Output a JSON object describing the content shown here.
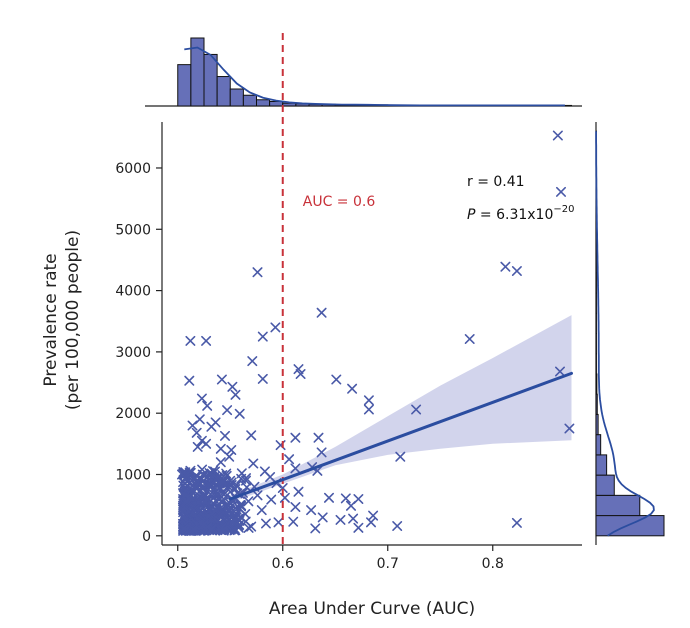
{
  "chart_data": {
    "type": "scatter",
    "xlabel": "Area Under Curve (AUC)",
    "ylabel_line1": "Prevalence rate",
    "ylabel_line2": "(per 100,000 people)",
    "xlim": [
      0.485,
      0.885
    ],
    "ylim": [
      -150,
      6750
    ],
    "x_ticks": [
      {
        "value": 0.5,
        "label": "0.5"
      },
      {
        "value": 0.6,
        "label": "0.6"
      },
      {
        "value": 0.7,
        "label": "0.7"
      },
      {
        "value": 0.8,
        "label": "0.8"
      }
    ],
    "y_ticks": [
      {
        "value": 0,
        "label": "0"
      },
      {
        "value": 1000,
        "label": "1000"
      },
      {
        "value": 2000,
        "label": "2000"
      },
      {
        "value": 3000,
        "label": "3000"
      },
      {
        "value": 4000,
        "label": "4000"
      },
      {
        "value": 5000,
        "label": "5000"
      },
      {
        "value": 6000,
        "label": "6000"
      }
    ],
    "threshold": {
      "x": 0.6,
      "label": "AUC = 0.6"
    },
    "stats": {
      "r_text": "r = 0.41",
      "p_prefix": "P",
      "p_value": " = 6.31x10",
      "p_exponent": "−20"
    },
    "regression": {
      "x0": 0.55,
      "y0": 600,
      "x1": 0.875,
      "y1": 2650
    },
    "confidence_band": {
      "upper": [
        [
          0.55,
          660
        ],
        [
          0.6,
          1000
        ],
        [
          0.65,
          1450
        ],
        [
          0.7,
          1950
        ],
        [
          0.75,
          2450
        ],
        [
          0.8,
          2900
        ],
        [
          0.875,
          3600
        ]
      ],
      "lower": [
        [
          0.55,
          540
        ],
        [
          0.6,
          850
        ],
        [
          0.65,
          1150
        ],
        [
          0.7,
          1320
        ],
        [
          0.75,
          1420
        ],
        [
          0.8,
          1500
        ],
        [
          0.875,
          1560
        ]
      ]
    },
    "points": [
      [
        0.862,
        6530
      ],
      [
        0.865,
        5610
      ],
      [
        0.812,
        4390
      ],
      [
        0.823,
        4320
      ],
      [
        0.576,
        4300
      ],
      [
        0.637,
        3640
      ],
      [
        0.593,
        3400
      ],
      [
        0.581,
        3250
      ],
      [
        0.778,
        3210
      ],
      [
        0.512,
        3180
      ],
      [
        0.527,
        3180
      ],
      [
        0.571,
        2850
      ],
      [
        0.615,
        2720
      ],
      [
        0.617,
        2640
      ],
      [
        0.581,
        2560
      ],
      [
        0.511,
        2530
      ],
      [
        0.542,
        2550
      ],
      [
        0.552,
        2430
      ],
      [
        0.651,
        2550
      ],
      [
        0.666,
        2400
      ],
      [
        0.864,
        2680
      ],
      [
        0.555,
        2300
      ],
      [
        0.523,
        2240
      ],
      [
        0.528,
        2120
      ],
      [
        0.547,
        2050
      ],
      [
        0.682,
        2210
      ],
      [
        0.682,
        2060
      ],
      [
        0.727,
        2060
      ],
      [
        0.559,
        1990
      ],
      [
        0.873,
        1750
      ],
      [
        0.521,
        1900
      ],
      [
        0.536,
        1850
      ],
      [
        0.514,
        1800
      ],
      [
        0.532,
        1780
      ],
      [
        0.612,
        1600
      ],
      [
        0.545,
        1630
      ],
      [
        0.57,
        1640
      ],
      [
        0.634,
        1600
      ],
      [
        0.551,
        1400
      ],
      [
        0.598,
        1480
      ],
      [
        0.712,
        1290
      ],
      [
        0.572,
        1180
      ],
      [
        0.637,
        1360
      ],
      [
        0.606,
        1250
      ],
      [
        0.612,
        1100
      ],
      [
        0.628,
        1120
      ],
      [
        0.633,
        1060
      ],
      [
        0.583,
        1050
      ],
      [
        0.588,
        960
      ],
      [
        0.565,
        900
      ],
      [
        0.594,
        860
      ],
      [
        0.573,
        800
      ],
      [
        0.6,
        780
      ],
      [
        0.615,
        720
      ],
      [
        0.562,
        700
      ],
      [
        0.576,
        660
      ],
      [
        0.589,
        590
      ],
      [
        0.602,
        620
      ],
      [
        0.644,
        620
      ],
      [
        0.66,
        610
      ],
      [
        0.672,
        600
      ],
      [
        0.665,
        490
      ],
      [
        0.612,
        470
      ],
      [
        0.627,
        420
      ],
      [
        0.58,
        420
      ],
      [
        0.686,
        330
      ],
      [
        0.667,
        280
      ],
      [
        0.638,
        300
      ],
      [
        0.655,
        260
      ],
      [
        0.61,
        230
      ],
      [
        0.596,
        220
      ],
      [
        0.631,
        120
      ],
      [
        0.672,
        130
      ],
      [
        0.709,
        160
      ],
      [
        0.684,
        220
      ],
      [
        0.823,
        210
      ],
      [
        0.57,
        150
      ],
      [
        0.584,
        200
      ],
      [
        0.549,
        1290
      ],
      [
        0.523,
        1550
      ],
      [
        0.541,
        1200
      ],
      [
        0.512,
        1060
      ],
      [
        0.519,
        1450
      ],
      [
        0.504,
        1000
      ],
      [
        0.541,
        1420
      ],
      [
        0.527,
        1500
      ],
      [
        0.561,
        1020
      ],
      [
        0.518,
        1680
      ]
    ],
    "cluster": {
      "x_range": [
        0.505,
        0.57
      ],
      "x_center": 0.53,
      "y_max": 1350,
      "y_spread": 430,
      "count": 460
    },
    "top_histogram": {
      "bins_x": [
        0.5,
        0.5125,
        0.525,
        0.5375,
        0.55,
        0.5625,
        0.575,
        0.5875,
        0.6,
        0.6125,
        0.625,
        0.6375,
        0.65,
        0.6625,
        0.675,
        0.6875,
        0.7,
        0.7125,
        0.725,
        0.7375,
        0.75,
        0.7625,
        0.775,
        0.7875,
        0.8,
        0.8125,
        0.825,
        0.8375,
        0.85,
        0.8625,
        0.875
      ],
      "counts": [
        73,
        120,
        91,
        52,
        30,
        19,
        11,
        8,
        5,
        4,
        3,
        3,
        2,
        2,
        2,
        2,
        1,
        1,
        1,
        1,
        1,
        1,
        1,
        1,
        1,
        1,
        1,
        1,
        1,
        1
      ]
    },
    "right_histogram": {
      "bin_width": 330,
      "counts": [
        160,
        103,
        43,
        25,
        11,
        5,
        3,
        2,
        1,
        1,
        1,
        1,
        1,
        1,
        1,
        1,
        1,
        1,
        1,
        1
      ]
    },
    "colors": {
      "marker": "#4a5aa8",
      "regression": "#2b4da0",
      "band": "#b4b8e0",
      "histogram_fill": "#6670b8",
      "threshold": "#c8323a",
      "axis": "#222222"
    }
  }
}
